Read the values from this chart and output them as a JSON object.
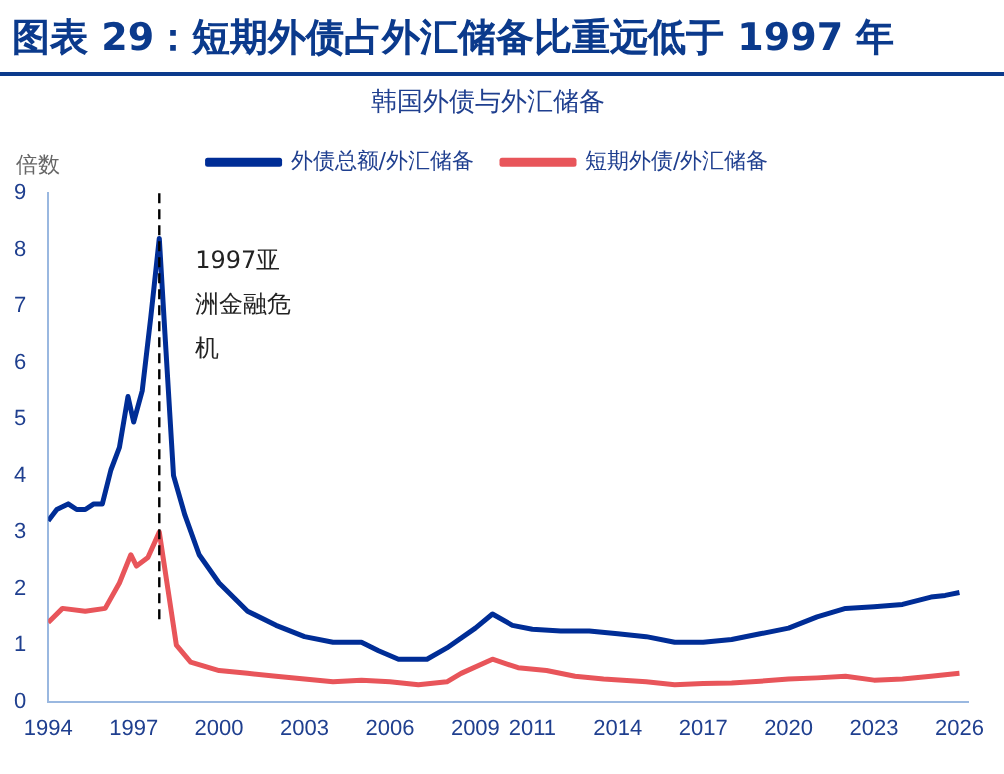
{
  "chart_data": {
    "type": "line",
    "title": "图表 29：短期外债占外汇储备比重远低于 1997 年",
    "subtitle": "韩国外债与外汇储备",
    "ylabel": "倍数",
    "xlim": [
      1994,
      2026.3
    ],
    "xticks": [
      1994,
      1997,
      2000,
      2003,
      2006,
      2009,
      2011,
      2014,
      2017,
      2020,
      2023,
      2026
    ],
    "ylim": [
      0,
      9
    ],
    "yticks": [
      0,
      1,
      2,
      3,
      4,
      5,
      6,
      7,
      8,
      9
    ],
    "grid": false,
    "legend": "top",
    "marker": "none",
    "line_style": "solid",
    "ref_lines": [
      {
        "axis": "x",
        "value": 1997.9,
        "label": "1997亚洲金融危机",
        "line_style": "dashed",
        "color": "#000000"
      }
    ],
    "series": [
      {
        "name": "外债总额/外汇储备",
        "color": "#002d96",
        "x": [
          1994,
          1994.3,
          1994.7,
          1995,
          1995.3,
          1995.6,
          1995.9,
          1996.2,
          1996.5,
          1996.8,
          1997,
          1997.3,
          1997.6,
          1997.9,
          1998.1,
          1998.4,
          1998.8,
          1999.3,
          2000,
          2001,
          2002,
          2003,
          2004,
          2005,
          2005.6,
          2006.3,
          2007.3,
          2008,
          2009,
          2009.6,
          2010.3,
          2011,
          2012,
          2013,
          2014,
          2015,
          2016,
          2017,
          2018,
          2019,
          2020,
          2021,
          2022,
          2023,
          2024,
          2025,
          2025.5,
          2026
        ],
        "values": [
          3.2,
          3.4,
          3.5,
          3.4,
          3.4,
          3.5,
          3.5,
          4.1,
          4.5,
          5.4,
          4.95,
          5.5,
          6.8,
          8.2,
          6.5,
          4.0,
          3.3,
          2.6,
          2.1,
          1.6,
          1.35,
          1.15,
          1.05,
          1.05,
          0.9,
          0.75,
          0.75,
          0.95,
          1.3,
          1.55,
          1.35,
          1.28,
          1.25,
          1.25,
          1.2,
          1.15,
          1.05,
          1.05,
          1.1,
          1.2,
          1.3,
          1.5,
          1.65,
          1.68,
          1.72,
          1.85,
          1.88,
          1.93
        ]
      },
      {
        "name": "短期外债/外汇储备",
        "color": "#e8555a",
        "x": [
          1994,
          1994.5,
          1995.3,
          1996,
          1996.5,
          1996.9,
          1997.1,
          1997.5,
          1997.9,
          1998.2,
          1998.5,
          1999,
          2000,
          2001,
          2002,
          2003,
          2004,
          2005,
          2006,
          2007,
          2008,
          2008.5,
          2009.6,
          2010.5,
          2011.5,
          2012.5,
          2013.5,
          2015,
          2016,
          2017,
          2018,
          2019,
          2020,
          2021,
          2022,
          2023,
          2024,
          2025,
          2026
        ],
        "values": [
          1.4,
          1.65,
          1.6,
          1.65,
          2.1,
          2.6,
          2.4,
          2.55,
          3.0,
          2.0,
          1.0,
          0.7,
          0.55,
          0.5,
          0.45,
          0.4,
          0.35,
          0.38,
          0.35,
          0.3,
          0.35,
          0.5,
          0.75,
          0.6,
          0.55,
          0.45,
          0.4,
          0.35,
          0.3,
          0.32,
          0.33,
          0.36,
          0.4,
          0.42,
          0.45,
          0.38,
          0.4,
          0.45,
          0.5
        ]
      }
    ]
  }
}
